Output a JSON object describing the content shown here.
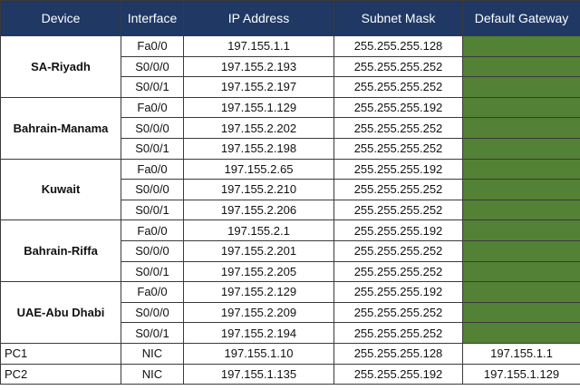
{
  "table": {
    "header": [
      "Device",
      "Interface",
      "IP Address",
      "Subnet Mask",
      "Default Gateway"
    ],
    "devices": [
      {
        "name": "SA-Riyadh",
        "interfaces": [
          {
            "interface": "Fa0/0",
            "ip": "197.155.1.1",
            "mask": "255.255.255.128"
          },
          {
            "interface": "S0/0/0",
            "ip": "197.155.2.193",
            "mask": "255.255.255.252"
          },
          {
            "interface": "S0/0/1",
            "ip": "197.155.2.197",
            "mask": "255.255.255.252"
          }
        ]
      },
      {
        "name": "Bahrain-Manama",
        "interfaces": [
          {
            "interface": "Fa0/0",
            "ip": "197.155.1.129",
            "mask": "255.255.255.192"
          },
          {
            "interface": "S0/0/0",
            "ip": "197.155.2.202",
            "mask": "255.255.255.252"
          },
          {
            "interface": "S0/0/1",
            "ip": "197.155.2.198",
            "mask": "255.255.255.252"
          }
        ]
      },
      {
        "name": "Kuwait",
        "interfaces": [
          {
            "interface": "Fa0/0",
            "ip": "197.155.2.65",
            "mask": "255.255.255.192"
          },
          {
            "interface": "S0/0/0",
            "ip": "197.155.2.210",
            "mask": "255.255.255.252"
          },
          {
            "interface": "S0/0/1",
            "ip": "197.155.2.206",
            "mask": "255.255.255.252"
          }
        ]
      },
      {
        "name": "Bahrain-Riffa",
        "interfaces": [
          {
            "interface": "Fa0/0",
            "ip": "197.155.2.1",
            "mask": "255.255.255.192"
          },
          {
            "interface": "S0/0/0",
            "ip": "197.155.2.201",
            "mask": "255.255.255.252"
          },
          {
            "interface": "S0/0/1",
            "ip": "197.155.2.205",
            "mask": "255.255.255.252"
          }
        ]
      },
      {
        "name": "UAE-Abu Dhabi",
        "interfaces": [
          {
            "interface": "Fa0/0",
            "ip": "197.155.2.129",
            "mask": "255.255.255.192"
          },
          {
            "interface": "S0/0/0",
            "ip": "197.155.2.209",
            "mask": "255.255.255.252"
          },
          {
            "interface": "S0/0/1",
            "ip": "197.155.2.194",
            "mask": "255.255.255.252"
          }
        ]
      }
    ],
    "pcs": [
      {
        "name": "PC1",
        "interface": "NIC",
        "ip": "197.155.1.10",
        "mask": "255.255.255.128",
        "gateway": "197.155.1.1"
      },
      {
        "name": "PC2",
        "interface": "NIC",
        "ip": "197.155.1.135",
        "mask": "255.255.255.192",
        "gateway": "197.155.1.129"
      }
    ]
  }
}
